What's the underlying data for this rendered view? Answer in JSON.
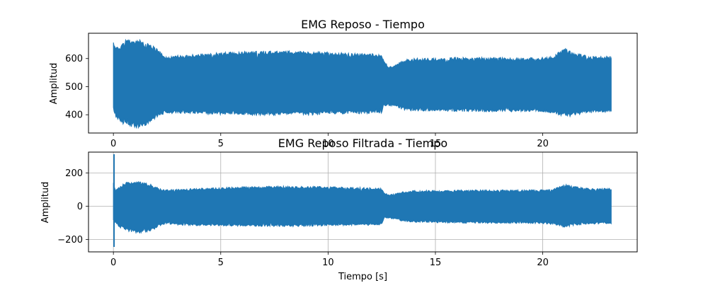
{
  "chart_data": [
    {
      "type": "line",
      "title": "EMG Reposo - Tiempo",
      "xlabel": "",
      "ylabel": "Amplitud",
      "xlim": [
        -1.16,
        24.4
      ],
      "ylim": [
        335,
        690
      ],
      "xticks": [
        0,
        5,
        10,
        15,
        20
      ],
      "yticks": [
        400,
        500,
        600
      ],
      "grid": false,
      "color": "#1f77b4",
      "series": [
        {
          "name": "EMG Reposo",
          "envelope": {
            "t": [
              0,
              0.1,
              0.3,
              0.6,
              0.9,
              1.2,
              1.5,
              1.8,
              2.1,
              2.4,
              3,
              4,
              5,
              6,
              7,
              8,
              9,
              10,
              11,
              12,
              12.5,
              12.6,
              12.8,
              13.1,
              13.5,
              14,
              15,
              16,
              17,
              18,
              19,
              20,
              20.5,
              21,
              21.2,
              21.5,
              22,
              22.5,
              23.2
            ],
            "max": [
              657,
              640,
              648,
              672,
              662,
              668,
              655,
              650,
              630,
              610,
              612,
              618,
              622,
              626,
              626,
              628,
              626,
              624,
              620,
              618,
              614,
              600,
              570,
              580,
              596,
              602,
              602,
              605,
              605,
              605,
              603,
              605,
              608,
              640,
              630,
              620,
              612,
              608,
              610
            ],
            "min": [
              420,
              390,
              370,
              360,
              355,
              352,
              360,
              370,
              395,
              404,
              404,
              402,
              400,
              398,
              397,
              398,
              398,
              400,
              402,
              404,
              406,
              430,
              432,
              430,
              416,
              412,
              412,
              411,
              410,
              410,
              410,
              410,
              402,
              394,
              392,
              398,
              404,
              408,
              410
            ]
          }
        }
      ]
    },
    {
      "type": "line",
      "title": "EMG Reposo Filtrada - Tiempo",
      "xlabel": "Tiempo [s]",
      "ylabel": "Amplitud",
      "xlim": [
        -1.16,
        24.4
      ],
      "ylim": [
        -275,
        325
      ],
      "xticks": [
        0,
        5,
        10,
        15,
        20
      ],
      "yticks": [
        -200,
        0,
        200
      ],
      "grid": true,
      "color": "#1f77b4",
      "series": [
        {
          "name": "EMG Reposo Filtrada",
          "spike": {
            "t": 0.03,
            "max": 312,
            "min": -245
          },
          "envelope": {
            "t": [
              0,
              0.1,
              0.3,
              0.6,
              0.9,
              1.2,
              1.5,
              1.8,
              2.1,
              2.4,
              3,
              4,
              5,
              6,
              7,
              8,
              9,
              10,
              11,
              12,
              12.5,
              12.6,
              12.8,
              13.1,
              13.5,
              14,
              15,
              16,
              17,
              18,
              19,
              20,
              20.5,
              21,
              21.2,
              21.5,
              22,
              22.5,
              23.2
            ],
            "max": [
              140,
              100,
              118,
              148,
              142,
              150,
              140,
              132,
              110,
              100,
              104,
              108,
              112,
              118,
              120,
              122,
              120,
              118,
              114,
              112,
              108,
              85,
              70,
              75,
              88,
              95,
              96,
              98,
              98,
              98,
              98,
              100,
              104,
              132,
              128,
              118,
              110,
              106,
              108
            ],
            "min": [
              -90,
              -100,
              -130,
              -150,
              -160,
              -165,
              -158,
              -150,
              -125,
              -110,
              -114,
              -118,
              -120,
              -122,
              -122,
              -124,
              -122,
              -120,
              -118,
              -116,
              -114,
              -75,
              -72,
              -80,
              -92,
              -98,
              -100,
              -102,
              -104,
              -104,
              -104,
              -106,
              -112,
              -128,
              -124,
              -115,
              -110,
              -108,
              -106
            ]
          }
        }
      ]
    }
  ]
}
